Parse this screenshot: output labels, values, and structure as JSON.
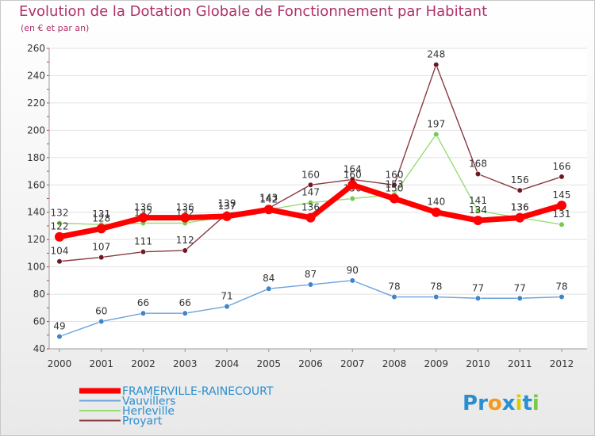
{
  "chart_data": {
    "type": "line",
    "title": "Evolution de la Dotation Globale de Fonctionnement par Habitant",
    "subtitle": "(en € et par an)",
    "xlabel": "",
    "ylabel": "",
    "ylim": [
      40,
      260
    ],
    "yticks": [
      40,
      60,
      80,
      100,
      120,
      140,
      160,
      180,
      200,
      220,
      240,
      260
    ],
    "x": [
      "2000",
      "2001",
      "2002",
      "2003",
      "2004",
      "2005",
      "2006",
      "2007",
      "2008",
      "2009",
      "2010",
      "2011",
      "2012"
    ],
    "grid": true,
    "legend_position": "bottom-left",
    "series": [
      {
        "name": "Proyart",
        "color": "#7a1f2b",
        "values": [
          104,
          107,
          111,
          112,
          139,
          143,
          160,
          164,
          160,
          248,
          168,
          156,
          166
        ]
      },
      {
        "name": "Herleville",
        "color": "#8fd66a",
        "values": [
          132,
          131,
          132,
          132,
          137,
          142,
          147,
          150,
          153,
          197,
          141,
          136,
          131
        ]
      },
      {
        "name": "Vauvillers",
        "color": "#5b9ad5",
        "values": [
          49,
          60,
          66,
          66,
          71,
          84,
          87,
          90,
          78,
          78,
          77,
          77,
          78
        ]
      },
      {
        "name": "FRAMERVILLE-RAINECOURT",
        "color": "#ff0000",
        "values": [
          122,
          128,
          136,
          136,
          137,
          142,
          136,
          160,
          150,
          140,
          134,
          136,
          145
        ]
      }
    ],
    "legend_order": [
      "FRAMERVILLE-RAINECOURT",
      "Vauvillers",
      "Herleville",
      "Proyart"
    ]
  },
  "logo": {
    "text": "Proxiti",
    "letters": [
      "P",
      "r",
      "o",
      "x",
      "i",
      "t",
      "i"
    ],
    "colors": [
      "#2a8fd0",
      "#2a8fd0",
      "#f29a1d",
      "#2a8fd0",
      "#d4d000",
      "#2a8fd0",
      "#7ac943"
    ]
  }
}
